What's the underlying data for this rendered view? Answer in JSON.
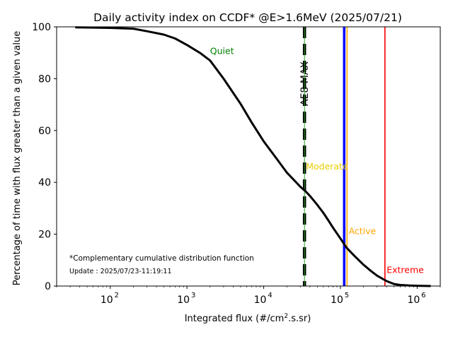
{
  "chart_data": {
    "type": "line",
    "title": "Daily activity index on CCDF* @E>1.6MeV (2025/07/21)",
    "xlabel": "Integrated flux (#/cm",
    "xlabel_sup": "2",
    "xlabel_tail": ".s.sr)",
    "ylabel": "Percentage of time with flux greater than a given value",
    "xscale": "log",
    "xlim": [
      20,
      2000000
    ],
    "ylim": [
      0,
      100
    ],
    "y_ticks": [
      "0",
      "20",
      "40",
      "60",
      "80",
      "100"
    ],
    "x_ticks": [
      {
        "value": 100,
        "base": "10",
        "exp": "2"
      },
      {
        "value": 1000,
        "base": "10",
        "exp": "3"
      },
      {
        "value": 10000,
        "base": "10",
        "exp": "4"
      },
      {
        "value": 100000,
        "base": "10",
        "exp": "5"
      },
      {
        "value": 1000000,
        "base": "10",
        "exp": "6"
      }
    ],
    "grid": false,
    "series": [
      {
        "color": "#000000",
        "x": [
          35,
          100,
          200,
          300,
          500,
          700,
          1000,
          1500,
          2000,
          3000,
          5000,
          7000,
          10000,
          15000,
          20000,
          25000,
          30000,
          35000,
          40000,
          50000,
          60000,
          70000,
          80000,
          100000,
          120000,
          150000,
          200000,
          250000,
          300000,
          400000,
          500000,
          600000,
          800000,
          1000000,
          1500000
        ],
        "y": [
          99.8,
          99.6,
          99.3,
          98.3,
          97.0,
          95.5,
          93.0,
          89.8,
          87.0,
          80.0,
          70.3,
          63.0,
          55.8,
          48.8,
          43.8,
          40.8,
          38.3,
          36.6,
          34.8,
          31.3,
          28.2,
          25.2,
          22.5,
          18.3,
          14.8,
          11.8,
          8.2,
          5.8,
          4.0,
          1.9,
          0.8,
          0.4,
          0.2,
          0.1,
          0.0
        ]
      }
    ],
    "vlines": [
      {
        "x": 34000,
        "color": "#000000",
        "style": "dashed-heavy",
        "label": "AE8 MAX"
      },
      {
        "x": 34000,
        "color": "#2ca02c",
        "style": "thin",
        "label": ""
      },
      {
        "x": 112000,
        "color": "#0000ff",
        "style": "thick",
        "label": ""
      },
      {
        "x": 122000,
        "color": "#ffa500",
        "style": "medium",
        "label": ""
      },
      {
        "x": 380000,
        "color": "#ff0000",
        "style": "medium",
        "label": ""
      }
    ],
    "region_labels": [
      {
        "text": "Quiet",
        "x": 2000,
        "y": 89.5,
        "color": "#008000"
      },
      {
        "text": "Moderate",
        "x": 35500,
        "y": 45,
        "color": "#e8d000"
      },
      {
        "text": "Active",
        "x": 128000,
        "y": 20,
        "color": "#ffa500"
      },
      {
        "text": "Extreme",
        "x": 400000,
        "y": 5,
        "color": "#ff0000"
      }
    ],
    "footnote": "*Complementary cumulative distribution function",
    "update": "Update : 2025/07/23-11:19:11"
  }
}
